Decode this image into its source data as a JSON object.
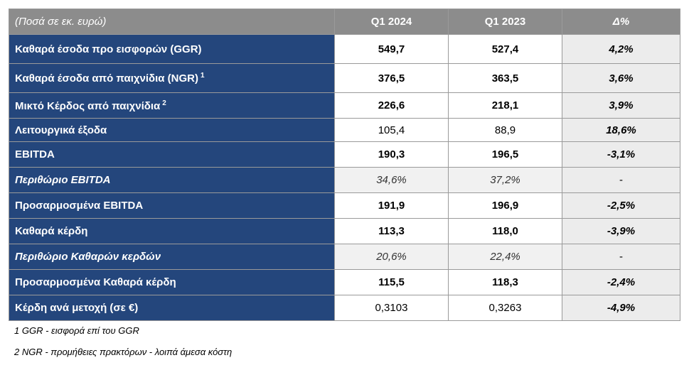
{
  "header": {
    "label": "(Ποσά σε εκ. ευρώ)",
    "col1": "Q1 2024",
    "col2": "Q1 2023",
    "col3": "Δ%"
  },
  "rows": [
    {
      "label": "Καθαρά έσοδα προ εισφορών (GGR)",
      "sup": "",
      "q1_2024": "549,7",
      "q1_2023": "527,4",
      "delta": "4,2%"
    },
    {
      "label": "Καθαρά έσοδα από παιχνίδια (NGR)",
      "sup": "1",
      "q1_2024": "376,5",
      "q1_2023": "363,5",
      "delta": "3,6%"
    },
    {
      "label": "Μικτό Κέρδος από παιχνίδια",
      "sup": "2",
      "q1_2024": "226,6",
      "q1_2023": "218,1",
      "delta": "3,9%"
    },
    {
      "label": "Λειτουργικά έξοδα",
      "sup": "",
      "q1_2024": "105,4",
      "q1_2023": "88,9",
      "delta": "18,6%"
    },
    {
      "label": "EBITDA",
      "sup": "",
      "q1_2024": "190,3",
      "q1_2023": "196,5",
      "delta": "-3,1%"
    },
    {
      "label": "Περιθώριο EBITDA",
      "sup": "",
      "q1_2024": "34,6%",
      "q1_2023": "37,2%",
      "delta": "-"
    },
    {
      "label": "Προσαρμοσμένα EBITDA",
      "sup": "",
      "q1_2024": "191,9",
      "q1_2023": "196,9",
      "delta": "-2,5%"
    },
    {
      "label": "Καθαρά κέρδη",
      "sup": "",
      "q1_2024": "113,3",
      "q1_2023": "118,0",
      "delta": "-3,9%"
    },
    {
      "label": "Περιθώριο Καθαρών κερδών",
      "sup": "",
      "q1_2024": "20,6%",
      "q1_2023": "22,4%",
      "delta": "-"
    },
    {
      "label": "Προσαρμοσμένα Καθαρά κέρδη",
      "sup": "",
      "q1_2024": "115,5",
      "q1_2023": "118,3",
      "delta": "-2,4%"
    },
    {
      "label": "Κέρδη ανά μετοχή (σε €)",
      "sup": "",
      "q1_2024": "0,3103",
      "q1_2023": "0,3263",
      "delta": "-4,9%"
    }
  ],
  "footnotes": {
    "fn1": "1 GGR - εισφορά επί του GGR",
    "fn2": "2 NGR - προμήθειες πρακτόρων - λοιπά άμεσα κόστη"
  },
  "colors": {
    "header_bg": "#8c8c8c",
    "label_bg": "#24467c",
    "delta_bg": "#ececec"
  }
}
